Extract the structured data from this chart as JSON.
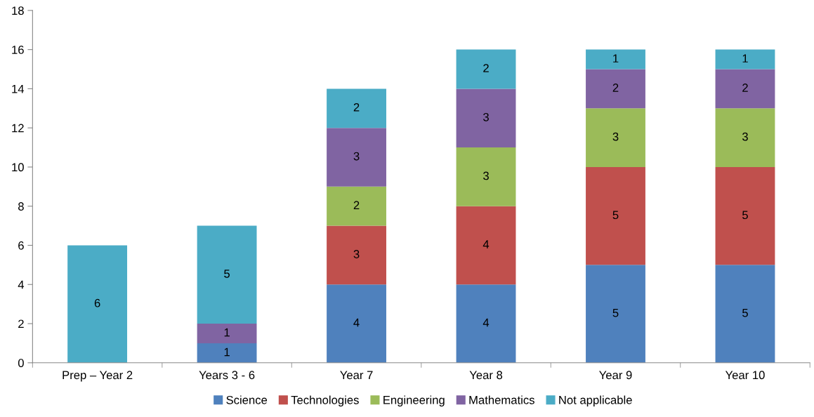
{
  "chart_data": {
    "type": "bar",
    "stacked": true,
    "categories": [
      "Prep – Year 2",
      "Years 3 - 6",
      "Year 7",
      "Year 8",
      "Year 9",
      "Year 10"
    ],
    "series": [
      {
        "name": "Science",
        "color": "#4f81bd",
        "values": [
          null,
          1,
          4,
          4,
          5,
          5
        ]
      },
      {
        "name": "Technologies",
        "color": "#c0504d",
        "values": [
          null,
          null,
          3,
          4,
          5,
          5
        ]
      },
      {
        "name": "Engineering",
        "color": "#9bbb59",
        "values": [
          null,
          null,
          2,
          3,
          3,
          3
        ]
      },
      {
        "name": "Mathematics",
        "color": "#8064a2",
        "values": [
          null,
          1,
          3,
          3,
          2,
          2
        ]
      },
      {
        "name": "Not applicable",
        "color": "#4bacc6",
        "values": [
          6,
          5,
          2,
          2,
          1,
          1
        ]
      }
    ],
    "ylim": [
      0,
      18
    ],
    "yticks": [
      0,
      2,
      4,
      6,
      8,
      10,
      12,
      14,
      16,
      18
    ],
    "data_labels": true,
    "legend": "bottom",
    "grid": false
  }
}
